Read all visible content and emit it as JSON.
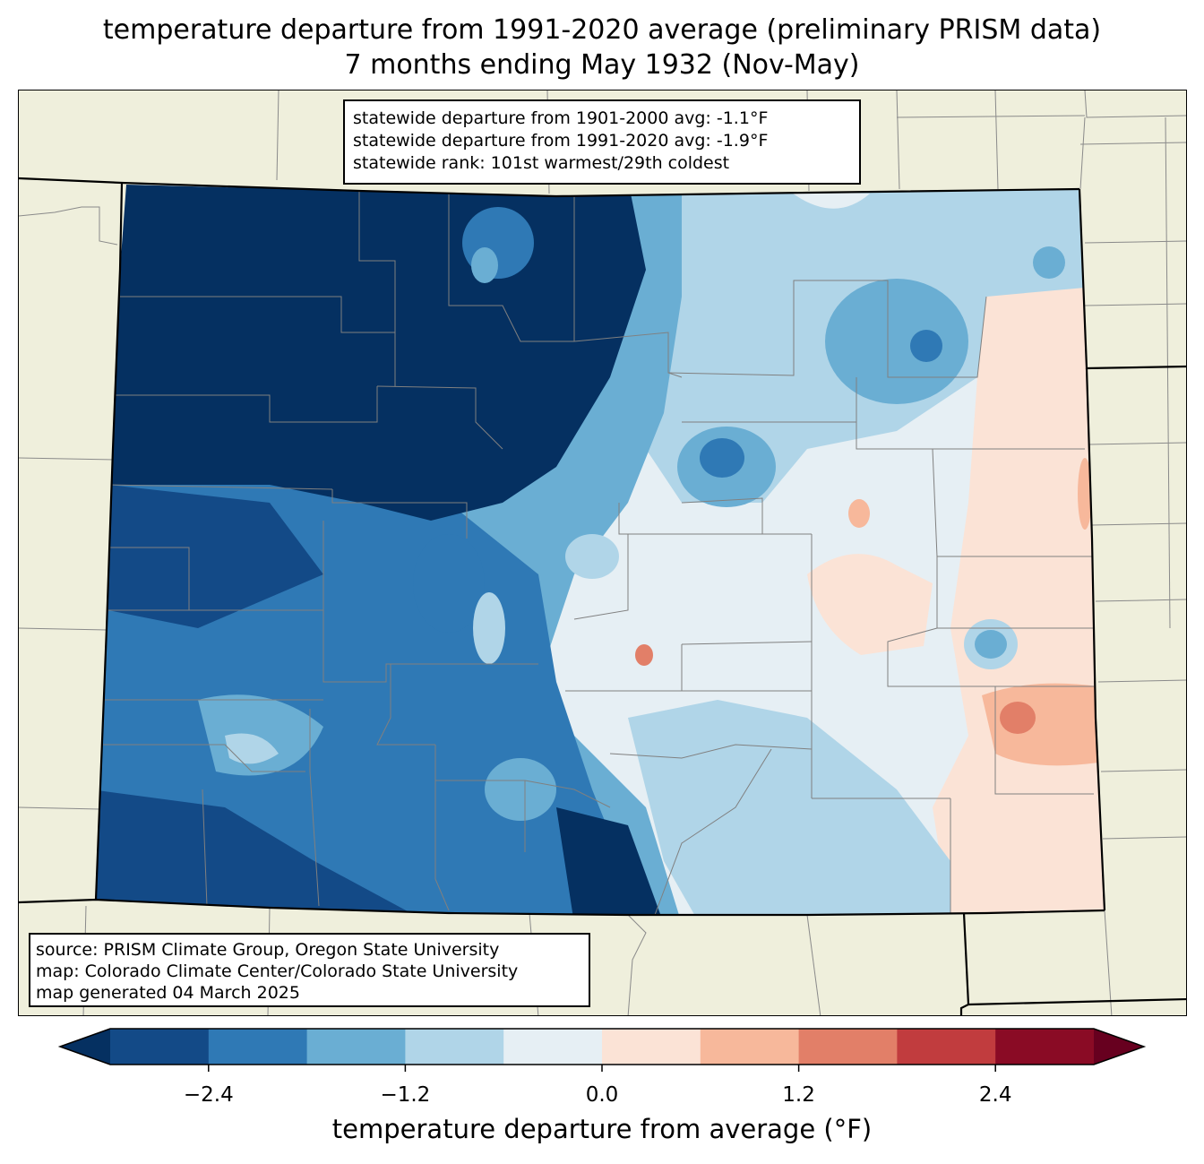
{
  "title": {
    "line1": "temperature departure from 1991-2020 average (preliminary PRISM data)",
    "line2": "7 months ending May 1932 (Nov-May)"
  },
  "stats": [
    "statewide departure from 1901-2000 avg: -1.1°F",
    "statewide departure from 1991-2020 avg: -1.9°F",
    "statewide rank: 101st warmest/29th coldest"
  ],
  "source": [
    "source: PRISM Climate Group, Oregon State University",
    "map: Colorado Climate Center/Colorado State University",
    "map generated 04 March 2025"
  ],
  "colorbar": {
    "label": "temperature departure from average (°F)",
    "min": -3.0,
    "max": 3.0,
    "step": 0.6,
    "ticks": [
      "−2.4",
      "−1.2",
      "0.0",
      "1.2",
      "2.4"
    ],
    "tick_values": [
      -2.4,
      -1.2,
      0.0,
      1.2,
      2.4
    ],
    "extend_low_color": "#053061",
    "extend_high_color": "#67001f",
    "colors": [
      "#134a87",
      "#2f79b5",
      "#6aaed3",
      "#b0d5e8",
      "#e6eff4",
      "#fbe3d6",
      "#f7b89b",
      "#e27f68",
      "#c13c3e",
      "#8a0b25"
    ]
  },
  "map": {
    "land_color": "#efefdc",
    "state_border_color": "#000000",
    "county_border_color": "#808080"
  }
}
